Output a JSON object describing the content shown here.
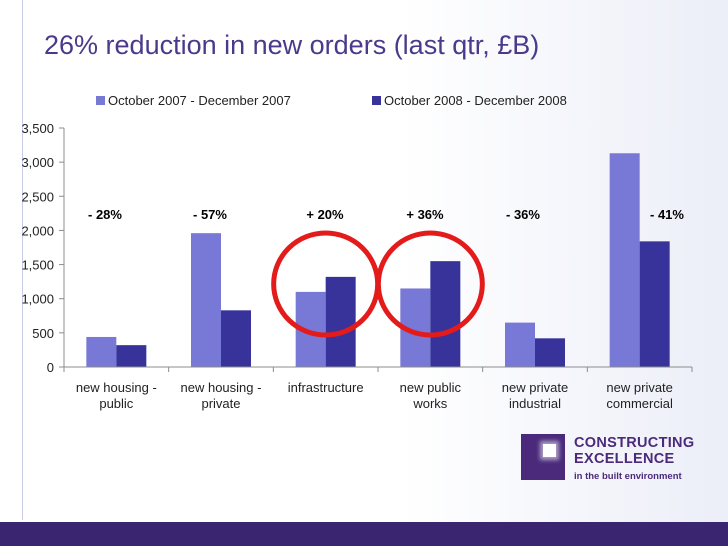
{
  "title": "26% reduction in new orders (last qtr, £B)",
  "colors": {
    "series1": "#7878d6",
    "series2": "#37339a",
    "circle": "#e41b1b",
    "title": "#4b3a8c",
    "footer": "#3a2670"
  },
  "chart_data": {
    "type": "bar",
    "title": "26% reduction in new orders (last qtr, £B)",
    "categories": [
      [
        "new housing -",
        "public"
      ],
      [
        "new housing -",
        "private"
      ],
      [
        "infrastructure"
      ],
      [
        "new public",
        "works"
      ],
      [
        "new private",
        "industrial"
      ],
      [
        "new private",
        "commercial"
      ]
    ],
    "series": [
      {
        "name": "October 2007 - December 2007",
        "values": [
          440,
          1960,
          1100,
          1150,
          650,
          3130
        ]
      },
      {
        "name": "October 2008 - December 2008",
        "values": [
          320,
          830,
          1320,
          1550,
          420,
          1840
        ]
      }
    ],
    "ylim": [
      0,
      3500
    ],
    "yticks": [
      "0",
      "500",
      "1,000",
      "1,500",
      "2,000",
      "2,500",
      "3,000",
      "3,500"
    ],
    "legend_position": "top",
    "grid": false,
    "annotations": [
      "- 28%",
      "- 57%",
      "+ 20%",
      "+ 36%",
      "- 36%",
      "- 41%"
    ],
    "highlighted_categories": [
      "infrastructure",
      "new public works"
    ]
  },
  "logo": {
    "line1": "CONSTRUCTING",
    "line2": "EXCELLENCE",
    "tagline": "in the built environment"
  }
}
